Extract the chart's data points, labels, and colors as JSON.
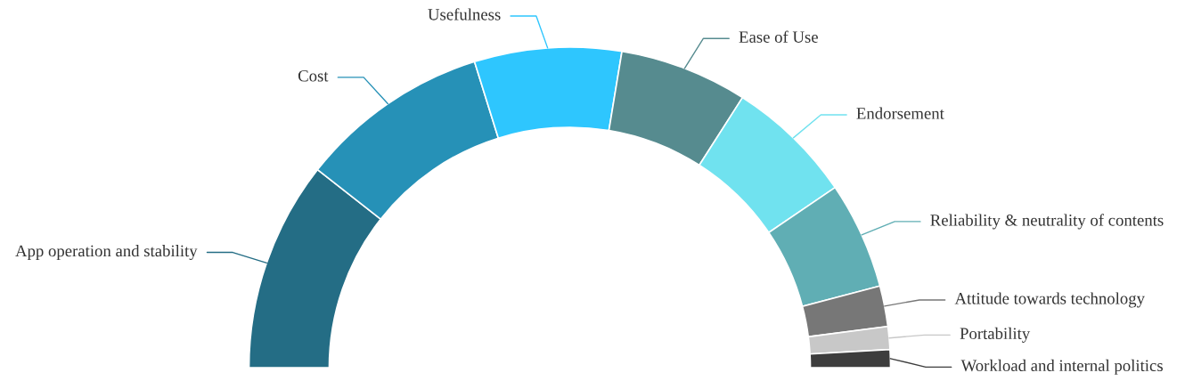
{
  "chart_data": {
    "type": "donut",
    "categories": [
      "App operation and stability",
      "Cost",
      "Usefulness",
      "Ease of Use",
      "Endorsement",
      "Reliability & neutrality of contents",
      "Attitude towards technology",
      "Portability",
      "Workload and internal politics"
    ],
    "values": [
      21.2,
      19.2,
      14.8,
      12.9,
      12.9,
      10.8,
      4.1,
      2.3,
      1.8
    ],
    "colors": [
      "#246d85",
      "#2691b7",
      "#2ec6fe",
      "#568b8f",
      "#70e2ef",
      "#60aeb4",
      "#777777",
      "#c8c8c8",
      "#3d3d3d"
    ]
  }
}
